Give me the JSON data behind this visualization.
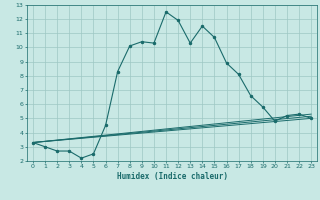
{
  "xlabel": "Humidex (Indice chaleur)",
  "xlim": [
    -0.5,
    23.5
  ],
  "ylim": [
    2,
    13
  ],
  "xticks": [
    0,
    1,
    2,
    3,
    4,
    5,
    6,
    7,
    8,
    9,
    10,
    11,
    12,
    13,
    14,
    15,
    16,
    17,
    18,
    19,
    20,
    21,
    22,
    23
  ],
  "yticks": [
    2,
    3,
    4,
    5,
    6,
    7,
    8,
    9,
    10,
    11,
    12,
    13
  ],
  "bg_color": "#c8e8e4",
  "line_color": "#1a6b6b",
  "grid_color": "#9ec8c4",
  "line1": {
    "x": [
      0,
      1,
      2,
      3,
      4,
      5,
      6,
      7,
      8,
      9,
      10,
      11,
      12,
      13,
      14,
      15,
      16,
      17,
      18,
      19,
      20,
      21,
      22,
      23
    ],
    "y": [
      3.3,
      3.0,
      2.7,
      2.7,
      2.2,
      2.5,
      4.5,
      8.3,
      10.1,
      10.4,
      10.3,
      12.5,
      11.9,
      10.3,
      11.5,
      10.7,
      8.9,
      8.1,
      6.6,
      5.8,
      4.8,
      5.2,
      5.3,
      5.0
    ]
  },
  "line2": {
    "x": [
      0,
      23
    ],
    "y": [
      3.3,
      5.0
    ]
  },
  "line3": {
    "x": [
      0,
      23
    ],
    "y": [
      3.3,
      5.3
    ]
  },
  "line4": {
    "x": [
      0,
      23
    ],
    "y": [
      3.3,
      5.15
    ]
  }
}
